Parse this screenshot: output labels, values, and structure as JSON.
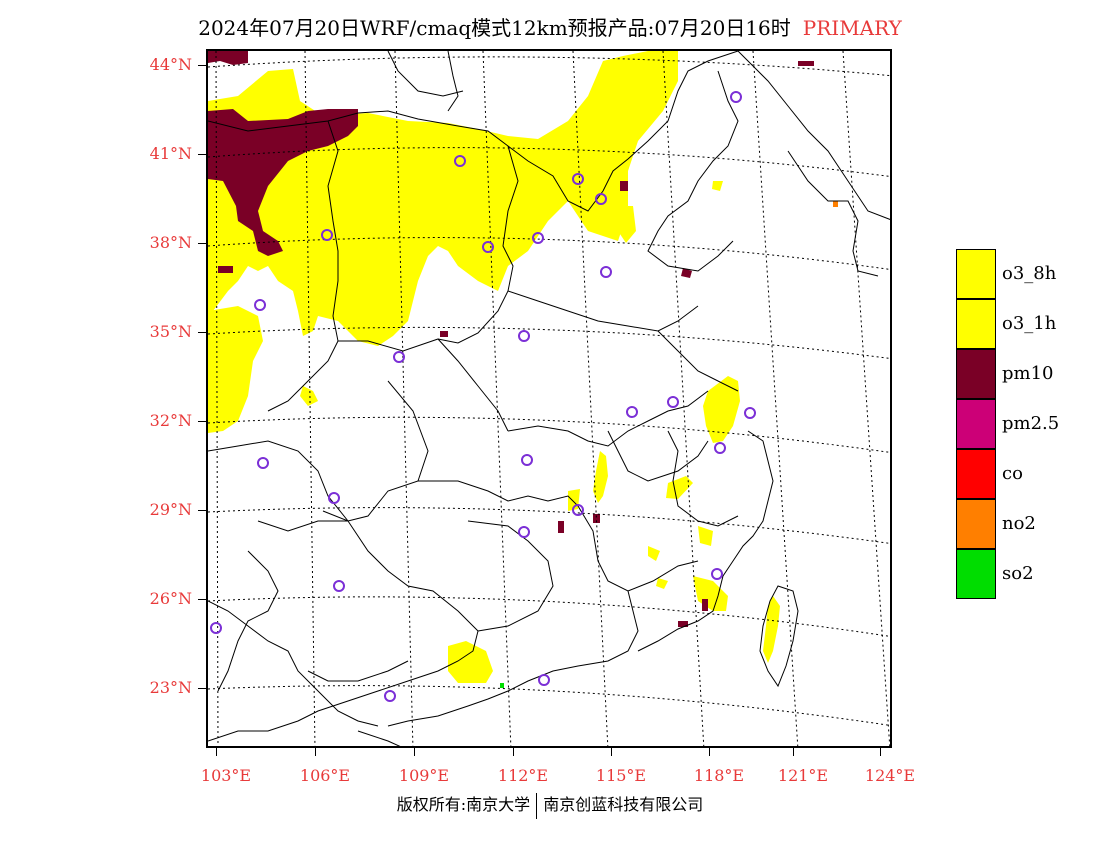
{
  "title": {
    "main": "2024年07月20日WRF/cmaq模式12km预报产品:07月20日16时",
    "tag": "PRIMARY"
  },
  "latitude_labels": [
    "44°N",
    "41°N",
    "38°N",
    "35°N",
    "32°N",
    "29°N",
    "26°N",
    "23°N"
  ],
  "longitude_labels": [
    "103°E",
    "106°E",
    "109°E",
    "112°E",
    "115°E",
    "118°E",
    "121°E",
    "124°E"
  ],
  "legend": [
    {
      "label": "o3_8h",
      "color": "#ffff00"
    },
    {
      "label": "o3_1h",
      "color": "#ffff00"
    },
    {
      "label": "pm10",
      "color": "#7a0026"
    },
    {
      "label": "pm2.5",
      "color": "#cc0077"
    },
    {
      "label": "co",
      "color": "#ff0000"
    },
    {
      "label": "no2",
      "color": "#ff7f00"
    },
    {
      "label": "so2",
      "color": "#00dd00"
    }
  ],
  "copyright": {
    "left": "版权所有:南京大学",
    "right": "南京创蓝科技有限公司"
  },
  "colors": {
    "axis_label": "#e83a3a",
    "city_marker": "#7b2fd6",
    "boundary": "#000000",
    "o3": "#ffff00",
    "pm10": "#7a0026",
    "so2": "#00dd00",
    "no2": "#ff7f00"
  }
}
